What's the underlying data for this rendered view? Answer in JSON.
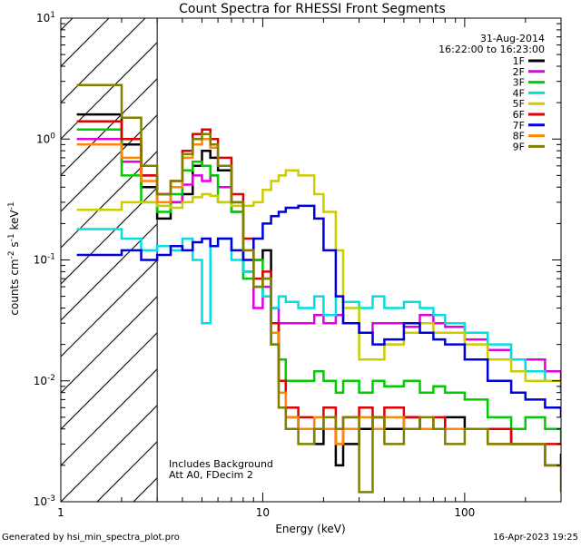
{
  "chart_data": {
    "type": "line",
    "title": "Count Spectra for RHESSI Front Segments",
    "xlabel": "Energy (keV)",
    "ylabel_main": "counts cm",
    "ylabel_sup1": "-2",
    "ylabel_mid": " s",
    "ylabel_sup2": "-1",
    "ylabel_mid2": " keV",
    "ylabel_sup3": "-1",
    "xscale": "log",
    "yscale": "log",
    "xlim": [
      1,
      300
    ],
    "ylim": [
      0.001,
      10
    ],
    "x_ticks": [
      {
        "value": 1,
        "label": "1"
      },
      {
        "value": 10,
        "label": "10"
      },
      {
        "value": 100,
        "label": "100"
      }
    ],
    "y_ticks": [
      {
        "value": 0.001,
        "base": "10",
        "exp": "-3"
      },
      {
        "value": 0.01,
        "base": "10",
        "exp": "-2"
      },
      {
        "value": 0.1,
        "base": "10",
        "exp": "-1"
      },
      {
        "value": 1,
        "base": "10",
        "exp": "0"
      },
      {
        "value": 10,
        "base": "10",
        "exp": "1"
      }
    ],
    "hatched_region": [
      1,
      3
    ],
    "date": "31-Aug-2014",
    "time_range": "16:22:00 to 16:23:00",
    "note_line1": "Includes Background",
    "note_line2": "Att A0, FDecim 2",
    "series": [
      {
        "name": "1F",
        "color": "#000000",
        "x": [
          1.2,
          2,
          2.5,
          3,
          3.5,
          4,
          4.5,
          5,
          5.5,
          6,
          7,
          8,
          9,
          10,
          11,
          12,
          13,
          15,
          18,
          20,
          23,
          25,
          30,
          35,
          40,
          50,
          60,
          70,
          80,
          100,
          130,
          170,
          200,
          250,
          300
        ],
        "y": [
          1.6,
          0.9,
          0.4,
          0.22,
          0.3,
          0.35,
          0.6,
          0.8,
          0.7,
          0.55,
          0.3,
          0.08,
          0.1,
          0.12,
          0.03,
          0.01,
          0.005,
          0.004,
          0.003,
          0.004,
          0.002,
          0.003,
          0.004,
          0.005,
          0.004,
          0.005,
          0.004,
          0.004,
          0.005,
          0.004,
          0.004,
          0.003,
          0.003,
          0.002,
          0.0025
        ]
      },
      {
        "name": "2F",
        "color": "#e000e0",
        "x": [
          1.2,
          2,
          2.5,
          3,
          3.5,
          4,
          4.5,
          5,
          5.5,
          6,
          7,
          8,
          9,
          10,
          11,
          12,
          13,
          15,
          18,
          20,
          23,
          25,
          30,
          35,
          40,
          50,
          60,
          70,
          80,
          100,
          130,
          170,
          200,
          250,
          300
        ],
        "y": [
          1.0,
          0.65,
          0.5,
          0.35,
          0.3,
          0.42,
          0.5,
          0.45,
          0.5,
          0.4,
          0.25,
          0.08,
          0.04,
          0.06,
          0.04,
          0.03,
          0.03,
          0.03,
          0.035,
          0.03,
          0.035,
          0.03,
          0.025,
          0.03,
          0.03,
          0.028,
          0.035,
          0.03,
          0.028,
          0.022,
          0.018,
          0.015,
          0.015,
          0.012,
          0.008
        ]
      },
      {
        "name": "3F",
        "color": "#00cc00",
        "x": [
          1.2,
          2,
          2.5,
          3,
          3.5,
          4,
          4.5,
          5,
          5.5,
          6,
          7,
          8,
          9,
          10,
          11,
          12,
          13,
          15,
          18,
          20,
          23,
          25,
          30,
          35,
          40,
          50,
          60,
          70,
          80,
          100,
          130,
          170,
          200,
          250,
          300
        ],
        "y": [
          1.2,
          0.5,
          0.3,
          0.25,
          0.35,
          0.55,
          0.65,
          0.6,
          0.5,
          0.3,
          0.25,
          0.07,
          0.1,
          0.05,
          0.02,
          0.015,
          0.01,
          0.01,
          0.012,
          0.01,
          0.008,
          0.01,
          0.008,
          0.01,
          0.009,
          0.01,
          0.008,
          0.009,
          0.008,
          0.007,
          0.005,
          0.004,
          0.005,
          0.004,
          0.003
        ]
      },
      {
        "name": "4F",
        "color": "#00e0e0",
        "x": [
          1.2,
          2,
          2.5,
          3,
          3.5,
          4,
          4.5,
          5,
          5.5,
          6,
          7,
          8,
          9,
          10,
          11,
          12,
          13,
          15,
          18,
          20,
          23,
          25,
          30,
          35,
          40,
          50,
          60,
          70,
          80,
          100,
          130,
          170,
          200,
          250,
          300
        ],
        "y": [
          0.18,
          0.15,
          0.12,
          0.13,
          0.12,
          0.15,
          0.1,
          0.03,
          0.13,
          0.15,
          0.1,
          0.08,
          0.06,
          0.05,
          0.04,
          0.05,
          0.045,
          0.04,
          0.05,
          0.035,
          0.05,
          0.045,
          0.04,
          0.05,
          0.04,
          0.045,
          0.04,
          0.035,
          0.03,
          0.025,
          0.02,
          0.015,
          0.012,
          0.01,
          0.008
        ]
      },
      {
        "name": "5F",
        "color": "#cccc00",
        "x": [
          1.2,
          2,
          2.5,
          3,
          3.5,
          4,
          4.5,
          5,
          5.5,
          6,
          7,
          8,
          9,
          10,
          11,
          12,
          13,
          15,
          18,
          20,
          23,
          25,
          30,
          35,
          40,
          50,
          60,
          70,
          80,
          100,
          130,
          170,
          200,
          250,
          300
        ],
        "y": [
          0.26,
          0.3,
          0.3,
          0.28,
          0.27,
          0.3,
          0.33,
          0.35,
          0.34,
          0.3,
          0.28,
          0.28,
          0.3,
          0.38,
          0.45,
          0.5,
          0.55,
          0.5,
          0.35,
          0.25,
          0.12,
          0.04,
          0.015,
          0.015,
          0.02,
          0.025,
          0.03,
          0.025,
          0.025,
          0.02,
          0.015,
          0.012,
          0.01,
          0.01,
          0.009
        ]
      },
      {
        "name": "6F",
        "color": "#e00000",
        "x": [
          1.2,
          2,
          2.5,
          3,
          3.5,
          4,
          4.5,
          5,
          5.5,
          6,
          7,
          8,
          9,
          10,
          11,
          12,
          13,
          15,
          18,
          20,
          23,
          25,
          30,
          35,
          40,
          50,
          60,
          70,
          80,
          100,
          130,
          170,
          200,
          250,
          300
        ],
        "y": [
          1.4,
          1.0,
          0.5,
          0.35,
          0.45,
          0.8,
          1.1,
          1.2,
          1.0,
          0.7,
          0.35,
          0.15,
          0.07,
          0.08,
          0.03,
          0.01,
          0.006,
          0.005,
          0.004,
          0.006,
          0.003,
          0.005,
          0.006,
          0.005,
          0.006,
          0.005,
          0.004,
          0.005,
          0.004,
          0.004,
          0.004,
          0.003,
          0.003,
          0.003,
          0.003
        ]
      },
      {
        "name": "7F",
        "color": "#0000dd",
        "x": [
          1.2,
          2,
          2.5,
          3,
          3.5,
          4,
          4.5,
          5,
          5.5,
          6,
          7,
          8,
          9,
          10,
          11,
          12,
          13,
          15,
          18,
          20,
          23,
          25,
          30,
          35,
          40,
          50,
          60,
          70,
          80,
          100,
          130,
          170,
          200,
          250,
          300
        ],
        "y": [
          0.11,
          0.12,
          0.1,
          0.11,
          0.13,
          0.12,
          0.14,
          0.15,
          0.13,
          0.15,
          0.12,
          0.1,
          0.15,
          0.2,
          0.23,
          0.25,
          0.27,
          0.28,
          0.22,
          0.12,
          0.05,
          0.03,
          0.025,
          0.02,
          0.022,
          0.03,
          0.025,
          0.022,
          0.02,
          0.015,
          0.01,
          0.008,
          0.007,
          0.006,
          0.005
        ]
      },
      {
        "name": "8F",
        "color": "#ff8800",
        "x": [
          1.2,
          2,
          2.5,
          3,
          3.5,
          4,
          4.5,
          5,
          5.5,
          6,
          7,
          8,
          9,
          10,
          11,
          12,
          13,
          15,
          18,
          20,
          23,
          25,
          30,
          35,
          40,
          50,
          60,
          70,
          80,
          100,
          130,
          170,
          200,
          250,
          300
        ],
        "y": [
          0.9,
          0.7,
          0.45,
          0.3,
          0.4,
          0.7,
          0.9,
          1.0,
          0.85,
          0.6,
          0.3,
          0.12,
          0.06,
          0.07,
          0.025,
          0.008,
          0.005,
          0.004,
          0.005,
          0.004,
          0.003,
          0.004,
          0.005,
          0.004,
          0.005,
          0.004,
          0.004,
          0.004,
          0.004,
          0.004,
          0.003,
          0.003,
          0.003,
          0.002,
          0.002
        ]
      },
      {
        "name": "9F",
        "color": "#808000",
        "x": [
          1.2,
          2,
          2.5,
          3,
          3.5,
          4,
          4.5,
          5,
          5.5,
          6,
          7,
          8,
          9,
          10,
          11,
          12,
          13,
          15,
          18,
          20,
          23,
          25,
          30,
          35,
          40,
          50,
          60,
          70,
          80,
          100,
          130,
          170,
          200,
          250,
          300
        ],
        "y": [
          2.8,
          1.5,
          0.6,
          0.35,
          0.45,
          0.75,
          1.0,
          1.1,
          0.9,
          0.6,
          0.3,
          0.12,
          0.06,
          0.07,
          0.02,
          0.006,
          0.004,
          0.003,
          0.004,
          0.005,
          0.004,
          0.005,
          0.0012,
          0.005,
          0.003,
          0.004,
          0.005,
          0.004,
          0.003,
          0.004,
          0.003,
          0.003,
          0.003,
          0.002,
          0.0012
        ]
      }
    ]
  },
  "footer": {
    "generated_by": "Generated by hsi_min_spectra_plot.pro",
    "date_stamp": "16-Apr-2023 19:25"
  }
}
